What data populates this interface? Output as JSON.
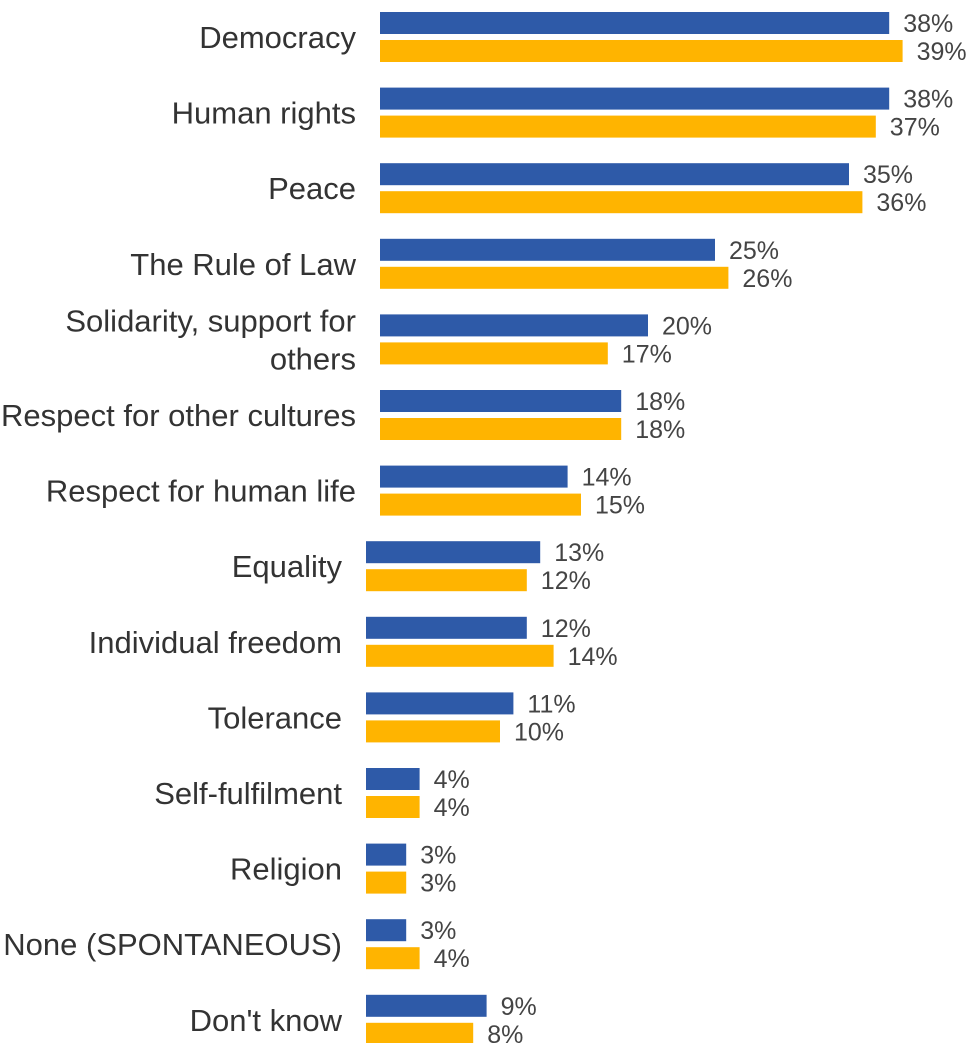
{
  "chart_data": {
    "type": "bar",
    "orientation": "horizontal",
    "categories": [
      [
        "Democracy"
      ],
      [
        "Human rights"
      ],
      [
        "Peace"
      ],
      [
        "The Rule of Law"
      ],
      [
        "Solidarity, support for",
        "others"
      ],
      [
        "Respect for other cultures"
      ],
      [
        "Respect for human life"
      ],
      [
        "Equality"
      ],
      [
        "Individual freedom"
      ],
      [
        "Tolerance"
      ],
      [
        "Self-fulfilment"
      ],
      [
        "Religion"
      ],
      [
        "None (SPONTANEOUS)"
      ],
      [
        "Don't know"
      ]
    ],
    "series": [
      {
        "color": "#2e5aa8",
        "values": [
          38,
          38,
          35,
          25,
          20,
          18,
          14,
          13,
          12,
          11,
          4,
          3,
          3,
          9
        ],
        "labels": [
          "38%",
          "38%",
          "35%",
          "25%",
          "20%",
          "18%",
          "14%",
          "13%",
          "12%",
          "11%",
          "4%",
          "3%",
          "3%",
          "9%"
        ]
      },
      {
        "color": "#ffb400",
        "values": [
          39,
          37,
          36,
          26,
          17,
          18,
          15,
          12,
          14,
          10,
          4,
          3,
          4,
          8
        ],
        "labels": [
          "39%",
          "37%",
          "36%",
          "26%",
          "17%",
          "18%",
          "15%",
          "12%",
          "14%",
          "10%",
          "4%",
          "3%",
          "4%",
          "8%"
        ]
      }
    ],
    "xlim": [
      0,
      40
    ],
    "grid": false,
    "legend": "none"
  }
}
